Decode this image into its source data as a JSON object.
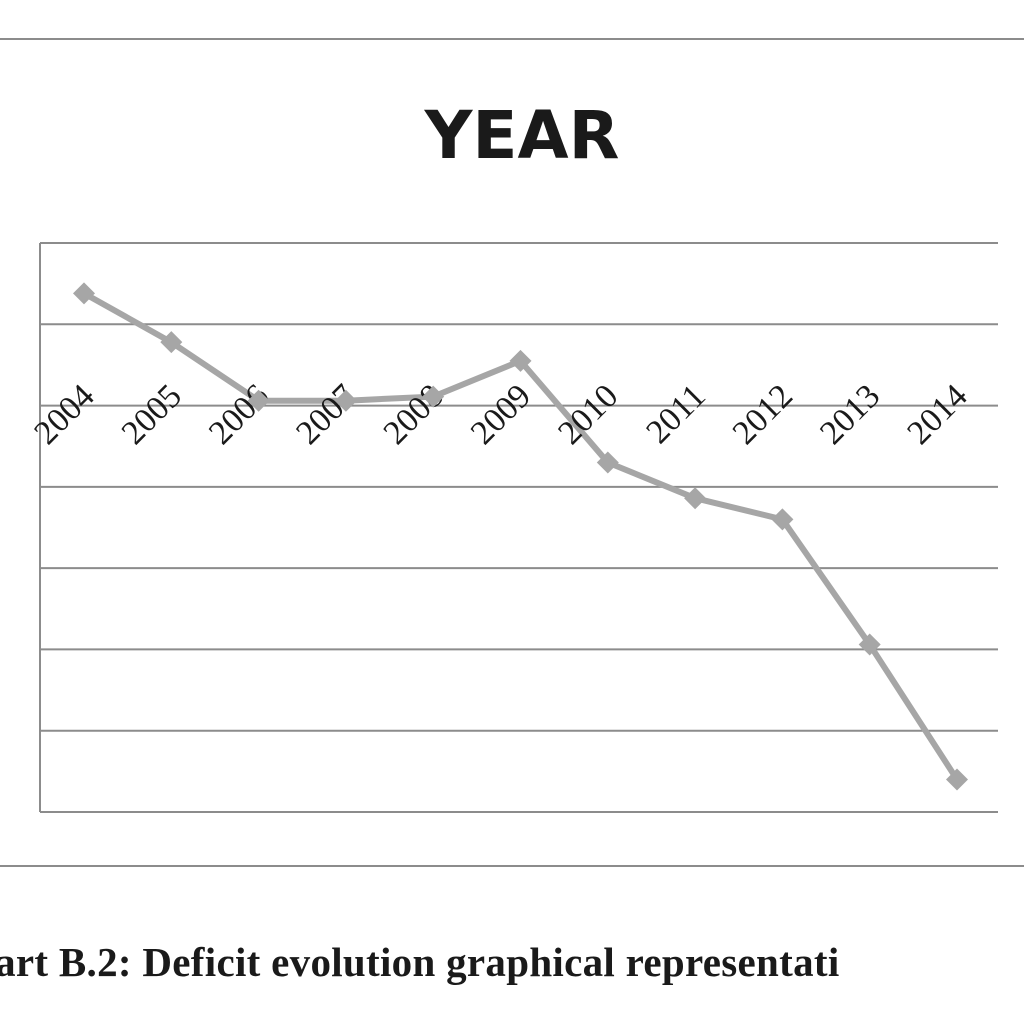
{
  "caption": "hart B.2: Deficit evolution graphical representati",
  "colors": {
    "series": "#a6a6a6",
    "grid": "#8c8c8c",
    "frame": "#8c8c8c",
    "text": "#1a1a1a"
  },
  "chart_data": {
    "type": "line",
    "title": "YEAR",
    "xlabel": "",
    "ylabel": "",
    "categories": [
      "2004",
      "2005",
      "2006",
      "2007",
      "2008",
      "2009",
      "2010",
      "2011",
      "2012",
      "2013",
      "2014"
    ],
    "ylim": [
      0,
      7
    ],
    "grid": true,
    "legend": "none",
    "marker": "diamond",
    "series": [
      {
        "values": [
          6.38,
          5.78,
          5.06,
          5.06,
          5.11,
          5.55,
          4.3,
          3.86,
          3.6,
          2.06,
          0.4
        ]
      }
    ]
  }
}
